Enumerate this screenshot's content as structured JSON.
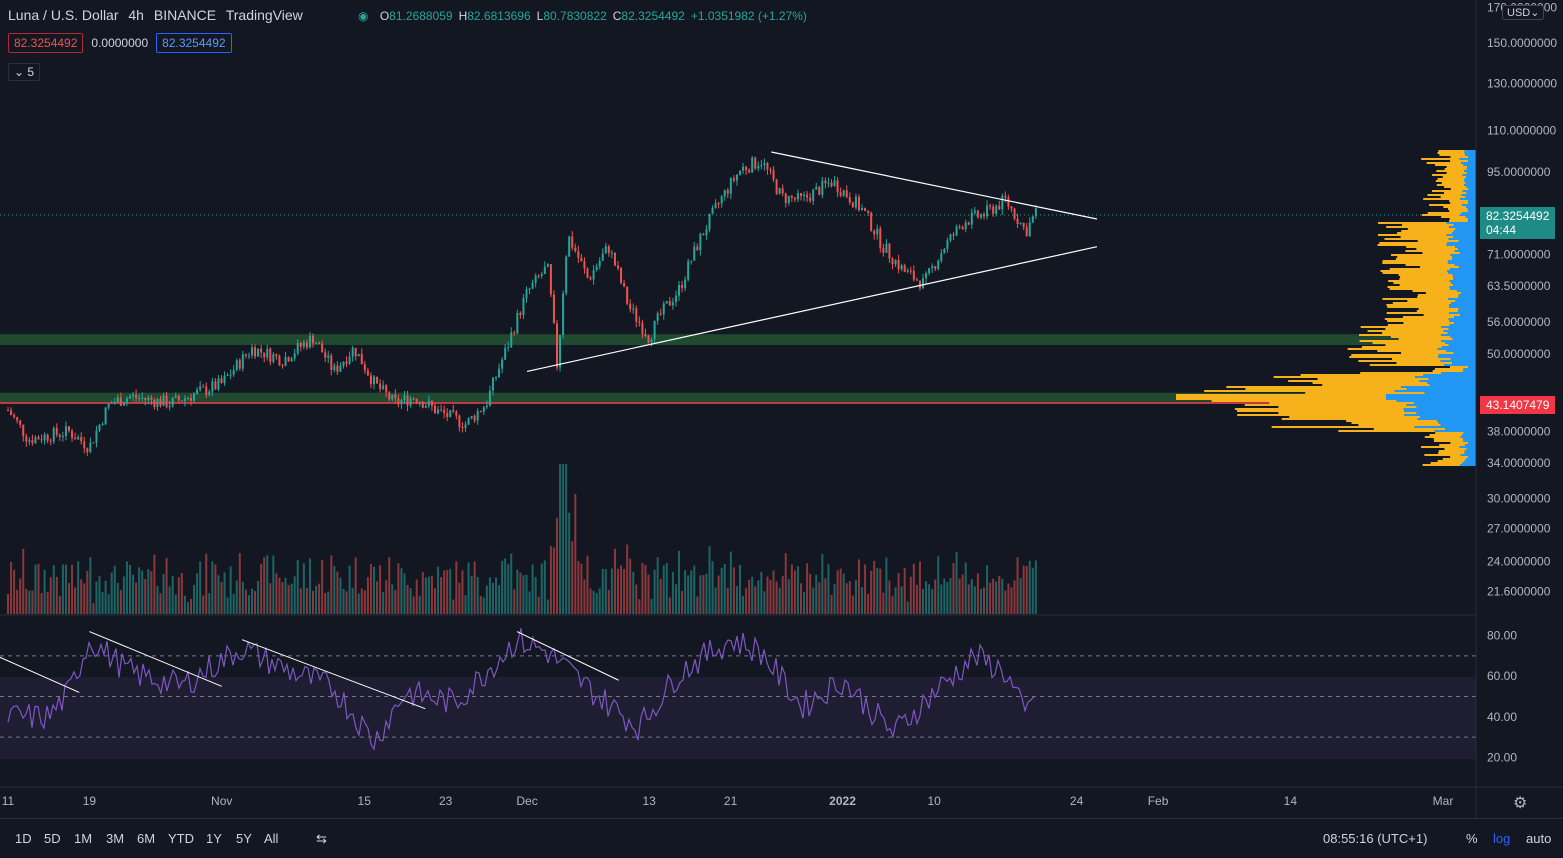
{
  "legend": {
    "symbol": "Luna / U.S. Dollar",
    "interval": "4h",
    "exchange": "BINANCE",
    "source": "TradingView",
    "ohlc": [
      {
        "k": "O",
        "v": "81.2688059"
      },
      {
        "k": "H",
        "v": "82.6813696"
      },
      {
        "k": "L",
        "v": "80.7830822"
      },
      {
        "k": "C",
        "v": "82.3254492"
      },
      {
        "k": "",
        "v": "+1.0351982 (+1.27%)"
      }
    ],
    "sell_price": "82.3254492",
    "spread": "0.0000000",
    "buy_price": "82.3254492",
    "indicator_count": "5"
  },
  "price_axis": {
    "currency_button": "USD",
    "current_price": "82.3254492",
    "countdown": "04:44",
    "poc_price": "43.1407479",
    "log_scale": true
  },
  "chart_data": {
    "type": "candlestick",
    "log_scale": true,
    "ylim": [
      20.6,
      172
    ],
    "x_tick_labels": [
      "11",
      "19",
      "Nov",
      "15",
      "23",
      "Dec",
      "13",
      "21",
      "2022",
      "10",
      "24",
      "Feb",
      "14",
      "Mar"
    ],
    "y_tick_labels": [
      "170.0000000",
      "150.0000000",
      "130.0000000",
      "110.0000000",
      "95.0000000",
      "82.3254492",
      "71.0000000",
      "63.5000000",
      "56.0000000",
      "50.0000000",
      "43.1407479",
      "38.0000000",
      "34.0000000",
      "30.0000000",
      "27.0000000",
      "24.0000000",
      "21.6000000"
    ],
    "price_path": [
      {
        "date": "Oct 11",
        "close": 41
      },
      {
        "date": "Oct 13",
        "close": 37
      },
      {
        "date": "Oct 17",
        "close": 38
      },
      {
        "date": "Oct 19",
        "close": 36
      },
      {
        "date": "Oct 21",
        "close": 42
      },
      {
        "date": "Oct 23",
        "close": 43
      },
      {
        "date": "Oct 27",
        "close": 42
      },
      {
        "date": "Nov 1",
        "close": 45
      },
      {
        "date": "Nov 4",
        "close": 51
      },
      {
        "date": "Nov 7",
        "close": 49
      },
      {
        "date": "Nov 10",
        "close": 53
      },
      {
        "date": "Nov 12",
        "close": 47
      },
      {
        "date": "Nov 14",
        "close": 51
      },
      {
        "date": "Nov 16",
        "close": 45
      },
      {
        "date": "Nov 18",
        "close": 42
      },
      {
        "date": "Nov 20",
        "close": 43
      },
      {
        "date": "Nov 22",
        "close": 41
      },
      {
        "date": "Nov 25",
        "close": 39
      },
      {
        "date": "Nov 27",
        "close": 42
      },
      {
        "date": "Nov 29",
        "close": 51
      },
      {
        "date": "Dec 1",
        "close": 62
      },
      {
        "date": "Dec 3",
        "close": 68
      },
      {
        "date": "Dec 4",
        "close": 47
      },
      {
        "date": "Dec 5",
        "close": 76
      },
      {
        "date": "Dec 7",
        "close": 65
      },
      {
        "date": "Dec 9",
        "close": 73
      },
      {
        "date": "Dec 11",
        "close": 59
      },
      {
        "date": "Dec 13",
        "close": 53
      },
      {
        "date": "Dec 14",
        "close": 57
      },
      {
        "date": "Dec 16",
        "close": 63
      },
      {
        "date": "Dec 18",
        "close": 75
      },
      {
        "date": "Dec 20",
        "close": 86
      },
      {
        "date": "Dec 22",
        "close": 96
      },
      {
        "date": "Dec 24",
        "close": 99
      },
      {
        "date": "Dec 26",
        "close": 87
      },
      {
        "date": "Dec 28",
        "close": 86
      },
      {
        "date": "Dec 31",
        "close": 92
      },
      {
        "date": "Jan 3",
        "close": 83
      },
      {
        "date": "Jan 5",
        "close": 73
      },
      {
        "date": "Jan 7",
        "close": 67
      },
      {
        "date": "Jan 9",
        "close": 64
      },
      {
        "date": "Jan 11",
        "close": 73
      },
      {
        "date": "Jan 13",
        "close": 80
      },
      {
        "date": "Jan 15",
        "close": 82
      },
      {
        "date": "Jan 17",
        "close": 86
      },
      {
        "date": "Jan 19",
        "close": 77
      },
      {
        "date": "Jan 20",
        "close": 82.3
      }
    ],
    "trendlines": [
      {
        "name": "triangle-upper",
        "from": {
          "date": "Dec 25",
          "price": 102
        },
        "to": {
          "date": "Jan 26",
          "price": 80.5
        }
      },
      {
        "name": "triangle-lower",
        "from": {
          "date": "Dec 1",
          "price": 47
        },
        "to": {
          "date": "Jan 26",
          "price": 73
        }
      }
    ],
    "zones": [
      {
        "name": "support-band",
        "low": 51.6,
        "high": 53.6,
        "color": "#1f4a30"
      },
      {
        "name": "poc-band",
        "low": 41.9,
        "high": 43.6,
        "color": "#1f4a30"
      }
    ],
    "volume_profile": {
      "type": "vertical-histogram",
      "colors": [
        "#f7b21b",
        "#2196f3"
      ],
      "poc": 43.14
    },
    "rsi": {
      "y_tick_labels": [
        "80.00",
        "60.00",
        "40.00",
        "20.00"
      ],
      "bands": [
        30,
        50,
        70
      ],
      "values_path": [
        {
          "date": "Oct 11",
          "v": 40
        },
        {
          "date": "Oct 15",
          "v": 40
        },
        {
          "date": "Oct 17",
          "v": 52
        },
        {
          "date": "Oct 19",
          "v": 78
        },
        {
          "date": "Oct 23",
          "v": 62
        },
        {
          "date": "Oct 28",
          "v": 55
        },
        {
          "date": "Nov 3",
          "v": 74
        },
        {
          "date": "Nov 7",
          "v": 64
        },
        {
          "date": "Nov 12",
          "v": 54
        },
        {
          "date": "Nov 16",
          "v": 28
        },
        {
          "date": "Nov 19",
          "v": 52
        },
        {
          "date": "Nov 24",
          "v": 47
        },
        {
          "date": "Nov 30",
          "v": 78
        },
        {
          "date": "Dec 3",
          "v": 72
        },
        {
          "date": "Dec 8",
          "v": 50
        },
        {
          "date": "Dec 12",
          "v": 35
        },
        {
          "date": "Dec 16",
          "v": 62
        },
        {
          "date": "Dec 21",
          "v": 78
        },
        {
          "date": "Dec 24",
          "v": 72
        },
        {
          "date": "Dec 28",
          "v": 45
        },
        {
          "date": "Jan 1",
          "v": 58
        },
        {
          "date": "Jan 6",
          "v": 32
        },
        {
          "date": "Jan 10",
          "v": 52
        },
        {
          "date": "Jan 14",
          "v": 70
        },
        {
          "date": "Jan 17",
          "v": 62
        },
        {
          "date": "Jan 19",
          "v": 40
        },
        {
          "date": "Jan 20",
          "v": 55
        }
      ]
    },
    "grid": false
  },
  "time_ranges": [
    "1D",
    "5D",
    "1M",
    "3M",
    "6M",
    "YTD",
    "1Y",
    "5Y",
    "All"
  ],
  "status": {
    "clock": "08:55:16 (UTC+1)",
    "percent": "%",
    "log": "log",
    "auto": "auto"
  },
  "colors": {
    "up": "#26a69a",
    "down": "#ef5350",
    "rsi": "#7e57c2",
    "accent": "#2962ff",
    "poc": "#f23645"
  }
}
